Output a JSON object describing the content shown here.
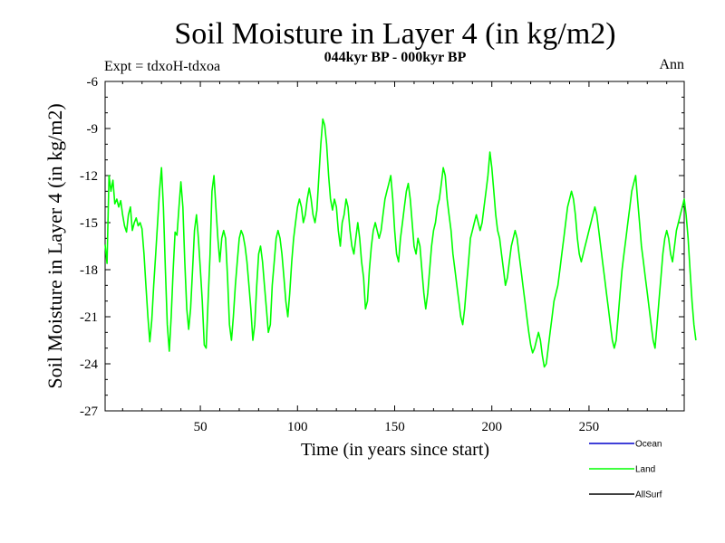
{
  "chart_data": {
    "type": "line",
    "title": "Soil Moisture in Layer 4 (in kg/m2)",
    "subtitle": "044kyr BP - 000kyr BP",
    "left_note": "Expt = tdxoH-tdxoa",
    "right_note": "Ann",
    "xlabel": "Time (in years since start)",
    "ylabel": "Soil Moisture in Layer 4 (in kg/m2)",
    "xlim": [
      1,
      299
    ],
    "ylim": [
      -27,
      -6
    ],
    "xticks": [
      50,
      100,
      150,
      200,
      250
    ],
    "yticks": [
      -6,
      -9,
      -12,
      -15,
      -18,
      -21,
      -24,
      -27
    ],
    "grid": false,
    "legend_position": "bottom-right",
    "legend": [
      {
        "name": "Ocean",
        "color": "#0000cc"
      },
      {
        "name": "Land",
        "color": "#00ff00"
      },
      {
        "name": "AllSurf",
        "color": "#000000"
      }
    ],
    "series": [
      {
        "name": "Land",
        "color": "#00ff00",
        "x_start": 1,
        "x_step": 1,
        "values": [
          -16.4,
          -17.6,
          -12.0,
          -13.0,
          -12.3,
          -13.8,
          -13.5,
          -14.0,
          -13.6,
          -14.5,
          -15.2,
          -15.6,
          -14.5,
          -14.0,
          -15.5,
          -15.0,
          -14.7,
          -15.2,
          -15.0,
          -15.4,
          -17.0,
          -19.0,
          -21.0,
          -22.6,
          -21.2,
          -19.0,
          -17.0,
          -15.0,
          -13.0,
          -11.5,
          -14.0,
          -18.0,
          -21.5,
          -23.2,
          -21.0,
          -18.0,
          -15.6,
          -15.8,
          -14.0,
          -12.4,
          -14.0,
          -17.5,
          -20.5,
          -21.8,
          -20.5,
          -18.0,
          -15.5,
          -14.5,
          -16.0,
          -18.0,
          -20.0,
          -22.8,
          -23.0,
          -20.0,
          -17.0,
          -13.0,
          -12.0,
          -14.0,
          -16.0,
          -17.5,
          -16.0,
          -15.5,
          -16.0,
          -18.5,
          -21.5,
          -22.5,
          -21.0,
          -19.0,
          -17.5,
          -16.0,
          -15.5,
          -15.8,
          -16.5,
          -17.5,
          -19.0,
          -20.5,
          -22.5,
          -21.5,
          -19.0,
          -17.0,
          -16.5,
          -17.5,
          -19.0,
          -20.5,
          -22.0,
          -21.5,
          -19.0,
          -17.5,
          -16.0,
          -15.5,
          -16.0,
          -17.0,
          -18.5,
          -20.0,
          -21.0,
          -19.5,
          -17.5,
          -16.0,
          -15.0,
          -14.0,
          -13.5,
          -14.0,
          -15.0,
          -14.5,
          -13.5,
          -12.8,
          -13.5,
          -14.5,
          -15.0,
          -14.2,
          -12.0,
          -10.0,
          -8.4,
          -8.8,
          -10.0,
          -12.0,
          -13.5,
          -14.2,
          -13.5,
          -14.0,
          -15.5,
          -16.5,
          -15.0,
          -14.5,
          -13.5,
          -14.0,
          -15.5,
          -16.5,
          -17.0,
          -16.0,
          -15.0,
          -16.0,
          -17.5,
          -18.5,
          -20.5,
          -20.0,
          -18.0,
          -16.5,
          -15.5,
          -15.0,
          -15.5,
          -16.0,
          -15.5,
          -14.5,
          -13.5,
          -13.0,
          -12.5,
          -12.0,
          -13.5,
          -15.5,
          -17.0,
          -17.5,
          -16.0,
          -15.0,
          -14.0,
          -13.0,
          -12.5,
          -13.5,
          -15.0,
          -16.5,
          -17.0,
          -16.0,
          -16.5,
          -18.0,
          -19.5,
          -20.5,
          -19.5,
          -18.0,
          -16.5,
          -15.5,
          -15.0,
          -14.0,
          -13.5,
          -12.5,
          -11.5,
          -12.0,
          -13.5,
          -14.5,
          -15.5,
          -17.0,
          -18.0,
          -19.0,
          -20.0,
          -21.0,
          -21.5,
          -20.5,
          -19.0,
          -17.5,
          -16.0,
          -15.5,
          -15.0,
          -14.5,
          -15.0,
          -15.5,
          -15.0,
          -14.0,
          -13.0,
          -12.0,
          -10.5,
          -11.5,
          -13.0,
          -14.5,
          -15.5,
          -16.0,
          -17.0,
          -18.0,
          -19.0,
          -18.5,
          -17.5,
          -16.5,
          -16.0,
          -15.5,
          -16.0,
          -17.0,
          -18.0,
          -19.0,
          -20.0,
          -21.0,
          -22.0,
          -22.8,
          -23.3,
          -23.0,
          -22.5,
          -22.0,
          -22.5,
          -23.5,
          -24.2,
          -24.0,
          -23.0,
          -22.0,
          -21.0,
          -20.0,
          -19.5,
          -19.0,
          -18.0,
          -17.0,
          -16.0,
          -15.0,
          -14.0,
          -13.5,
          -13.0,
          -13.5,
          -14.5,
          -16.0,
          -17.0,
          -17.5,
          -17.0,
          -16.5,
          -16.0,
          -15.5,
          -15.0,
          -14.5,
          -14.0,
          -14.5,
          -15.5,
          -16.5,
          -17.5,
          -18.5,
          -19.5,
          -20.5,
          -21.5,
          -22.5,
          -23.0,
          -22.5,
          -21.0,
          -19.5,
          -18.0,
          -17.0,
          -16.0,
          -15.0,
          -14.0,
          -13.0,
          -12.5,
          -12.0,
          -13.5,
          -15.0,
          -16.5,
          -17.5,
          -18.5,
          -19.5,
          -20.5,
          -21.5,
          -22.5,
          -23.0,
          -21.5,
          -20.0,
          -18.5,
          -17.0,
          -16.0,
          -15.5,
          -16.0,
          -17.0,
          -17.5,
          -16.5,
          -15.5,
          -15.0,
          -14.5,
          -14.0,
          -13.5,
          -14.5,
          -16.0,
          -18.0,
          -20.0,
          -21.5,
          -22.5
        ]
      }
    ]
  }
}
